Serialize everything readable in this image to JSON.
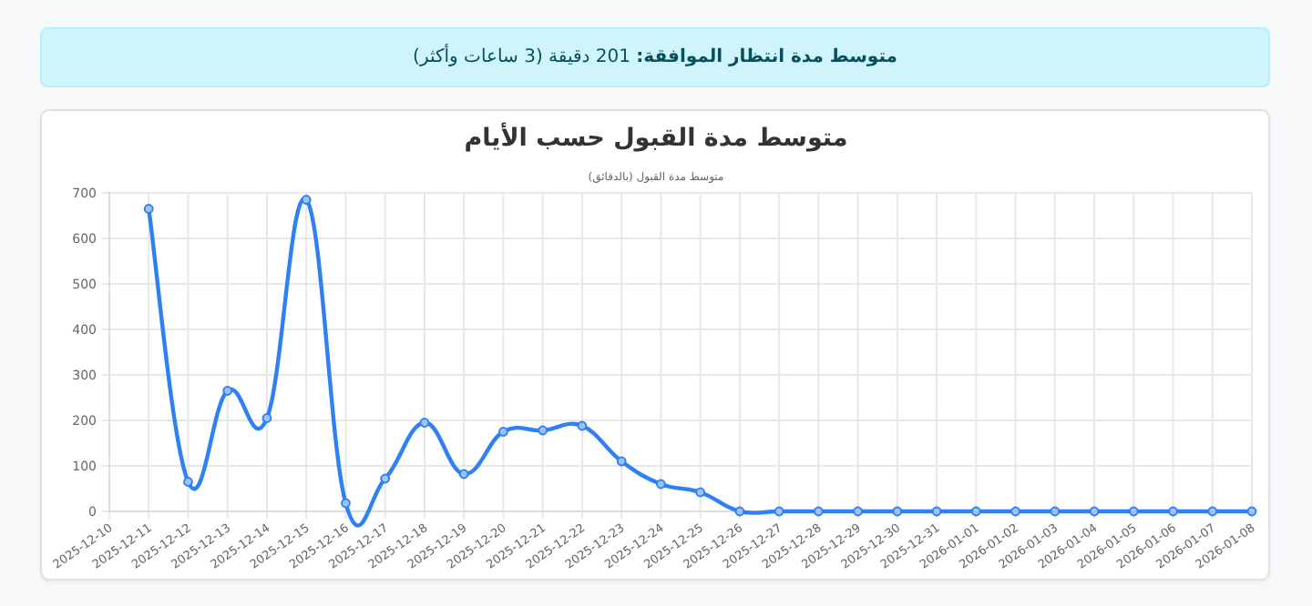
{
  "chart_data": {
    "type": "line",
    "title": "متوسط مدة القبول حسب الأيام",
    "subtitle": "متوسط مدة القبول (بالدقائق)",
    "annotations": [
      "**متوسط مدة انتظار الموافقة:** 201 دقيقة (3 ساعات وأكثر)"
    ],
    "categories": [
      "2025-12-10",
      "2025-12-11",
      "2025-12-12",
      "2025-12-13",
      "2025-12-14",
      "2025-12-15",
      "2025-12-16",
      "2025-12-17",
      "2025-12-18",
      "2025-12-19",
      "2025-12-20",
      "2025-12-21",
      "2025-12-22",
      "2025-12-23",
      "2025-12-24",
      "2025-12-25",
      "2025-12-26",
      "2025-12-27",
      "2025-12-28",
      "2025-12-29",
      "2025-12-30",
      "2025-12-31",
      "2026-01-01",
      "2026-01-02",
      "2026-01-03",
      "2026-01-04",
      "2026-01-05",
      "2026-01-06",
      "2026-01-07",
      "2026-01-08"
    ],
    "series": [
      {
        "color": "#2f80f5",
        "values": [
          null,
          665,
          65,
          265,
          205,
          685,
          18,
          72,
          195,
          82,
          175,
          178,
          188,
          110,
          60,
          42,
          0,
          0,
          0,
          0,
          0,
          0,
          0,
          0,
          0,
          0,
          0,
          0,
          0,
          0
        ]
      }
    ],
    "ylim": [
      0,
      700
    ],
    "yticks": [
      0,
      100,
      200,
      300,
      400,
      500,
      600,
      700
    ],
    "grid": true,
    "marker": "circle",
    "line_style": "solid"
  }
}
